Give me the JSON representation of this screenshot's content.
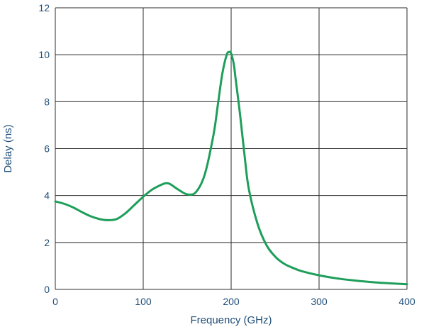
{
  "chart_data": {
    "type": "line",
    "title": "",
    "xlabel": "Frequency (GHz)",
    "ylabel": "Delay (ns)",
    "xlim": [
      0,
      400
    ],
    "ylim": [
      0,
      12
    ],
    "x_ticks": [
      0,
      100,
      200,
      300,
      400
    ],
    "y_ticks": [
      0,
      2,
      4,
      6,
      8,
      10,
      12
    ],
    "grid": true,
    "colors": {
      "line": "#1e9e5a",
      "grid": "#2b2b2b",
      "text": "#1f4e79"
    },
    "series": [
      {
        "x": [
          0,
          10,
          20,
          30,
          40,
          50,
          60,
          70,
          80,
          90,
          100,
          110,
          120,
          125,
          130,
          140,
          150,
          160,
          170,
          180,
          185,
          190,
          195,
          198,
          200,
          203,
          205,
          210,
          215,
          220,
          230,
          240,
          250,
          260,
          270,
          280,
          300,
          320,
          340,
          360,
          380,
          400
        ],
        "y": [
          3.75,
          3.65,
          3.5,
          3.3,
          3.12,
          3.0,
          2.95,
          3.0,
          3.25,
          3.6,
          3.95,
          4.25,
          4.45,
          4.52,
          4.5,
          4.25,
          4.05,
          4.15,
          4.9,
          6.6,
          7.9,
          9.2,
          10.0,
          10.12,
          10.05,
          9.6,
          9.0,
          7.5,
          5.8,
          4.3,
          2.8,
          1.9,
          1.4,
          1.1,
          0.92,
          0.78,
          0.6,
          0.47,
          0.38,
          0.31,
          0.26,
          0.22
        ]
      }
    ]
  }
}
